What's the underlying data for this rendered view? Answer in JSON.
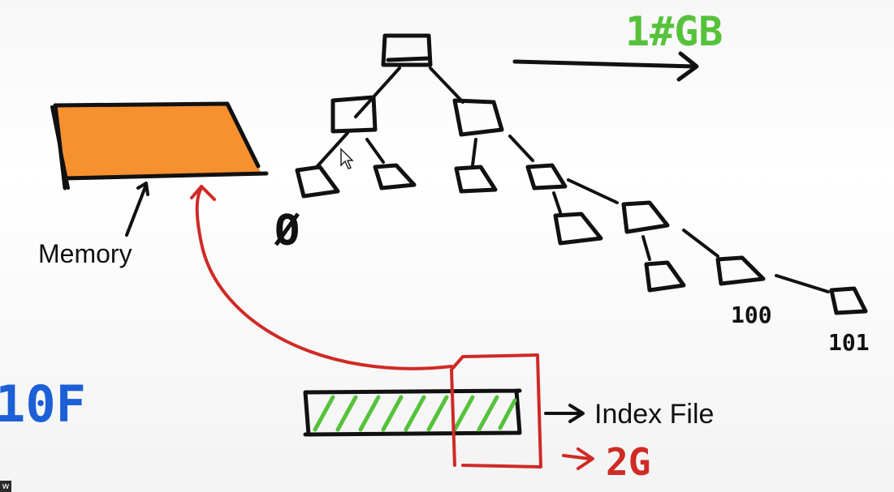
{
  "labels": {
    "memory": "Memory",
    "index_file": "Index File",
    "size_top": "1#GB",
    "size_index": "2G",
    "leaf_100": "100",
    "leaf_101": "101",
    "empty_symbol": "Ø",
    "blue_note": "10F"
  },
  "colors": {
    "ink": "#111111",
    "memory_fill": "#f7902f",
    "red_arrow": "#cf2a26",
    "green_note": "#56c23b",
    "blue_note": "#1d5fd6"
  },
  "icons": [
    "mouse-cursor-icon",
    "arrow-right-icon"
  ],
  "corner_label": "w"
}
